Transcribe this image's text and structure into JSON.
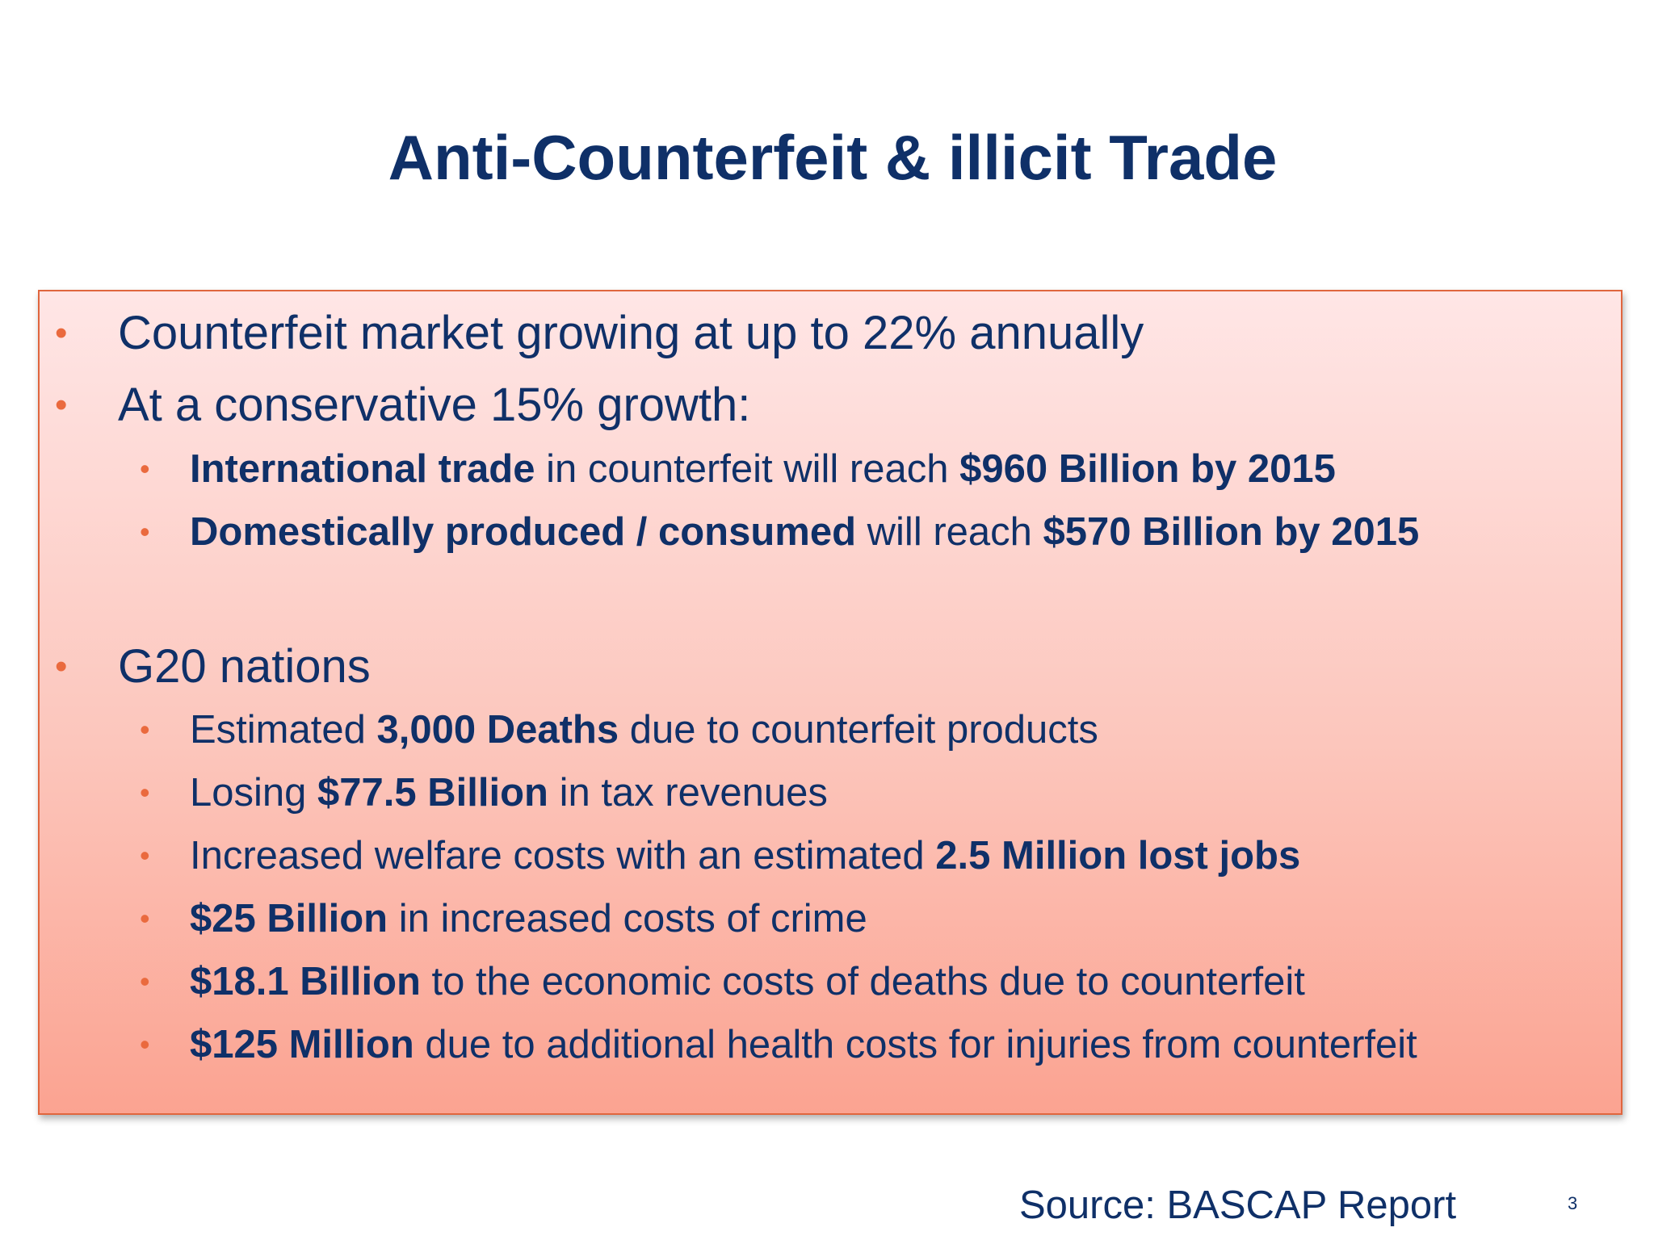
{
  "slide": {
    "title": "Anti-Counterfeit & illicit Trade",
    "source": "Source: BASCAP Report",
    "page_number": "3",
    "bullet_glyph": "•"
  },
  "bullets": [
    {
      "level": 1,
      "parts": [
        {
          "text": "Counterfeit market growing at up to 22% annually",
          "bold": false
        }
      ]
    },
    {
      "level": 1,
      "parts": [
        {
          "text": "At a conservative 15% growth:",
          "bold": false
        }
      ]
    },
    {
      "level": 2,
      "parts": [
        {
          "text": "International trade",
          "bold": true
        },
        {
          "text": " in counterfeit will reach ",
          "bold": false
        },
        {
          "text": "$960 Billion by 2015",
          "bold": true
        }
      ]
    },
    {
      "level": 2,
      "parts": [
        {
          "text": "Domestically produced / consumed",
          "bold": true
        },
        {
          "text": " will reach ",
          "bold": false
        },
        {
          "text": "$570 Billion by 2015",
          "bold": true
        }
      ]
    },
    {
      "level": 1,
      "parts": [
        {
          "text": "G20 nations",
          "bold": false
        }
      ]
    },
    {
      "level": 2,
      "parts": [
        {
          "text": "Estimated ",
          "bold": false
        },
        {
          "text": "3,000 Deaths",
          "bold": true
        },
        {
          "text": " due to counterfeit products",
          "bold": false
        }
      ]
    },
    {
      "level": 2,
      "parts": [
        {
          "text": "Losing ",
          "bold": false
        },
        {
          "text": "$77.5 Billion",
          "bold": true
        },
        {
          "text": " in tax revenues",
          "bold": false
        }
      ]
    },
    {
      "level": 2,
      "parts": [
        {
          "text": "Increased welfare costs with an estimated ",
          "bold": false
        },
        {
          "text": "2.5 Million lost jobs",
          "bold": true
        }
      ]
    },
    {
      "level": 2,
      "parts": [
        {
          "text": "$25 Billion",
          "bold": true
        },
        {
          "text": " in increased costs of crime",
          "bold": false
        }
      ]
    },
    {
      "level": 2,
      "parts": [
        {
          "text": "$18.1 Billion",
          "bold": true
        },
        {
          "text": " to the economic costs of deaths due to counterfeit",
          "bold": false
        }
      ]
    },
    {
      "level": 2,
      "parts": [
        {
          "text": "$125 Million",
          "bold": true
        },
        {
          "text": " due to additional health costs for injuries from counterfeit",
          "bold": false
        }
      ]
    }
  ],
  "colors": {
    "text": "#0f3068",
    "bullet": "#ea6a3e",
    "box_border": "#e0663e",
    "box_top": "#ffe6e6",
    "box_bottom": "#fba391"
  }
}
